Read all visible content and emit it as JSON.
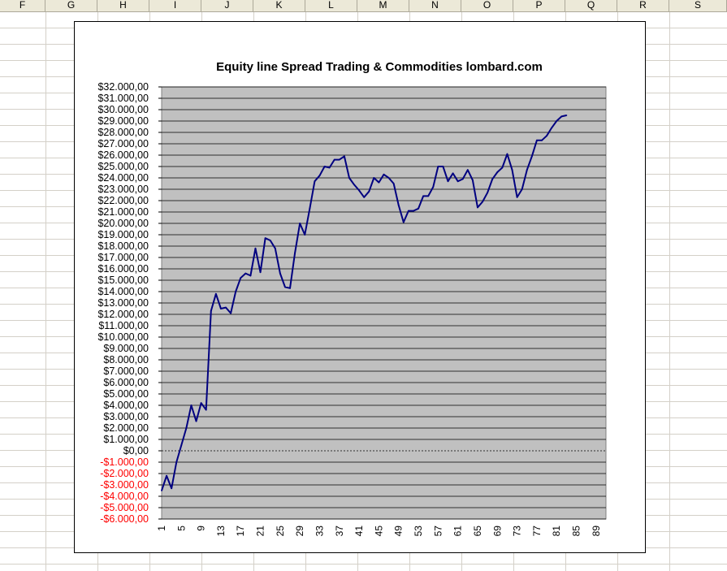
{
  "spreadsheet": {
    "columns": [
      {
        "label": "F"
      },
      {
        "label": "G"
      },
      {
        "label": "H"
      },
      {
        "label": "I"
      },
      {
        "label": "J"
      },
      {
        "label": "K"
      },
      {
        "label": "L"
      },
      {
        "label": "M"
      },
      {
        "label": "N"
      },
      {
        "label": "O"
      },
      {
        "label": "P"
      },
      {
        "label": "Q"
      },
      {
        "label": "R"
      },
      {
        "label": "S"
      }
    ]
  },
  "chart_data": {
    "type": "line",
    "title": "Equity line Spread Trading & Commodities lombard.com",
    "xlabel": "",
    "ylabel": "",
    "ylim": [
      -6000,
      32000
    ],
    "xlim": [
      1,
      91
    ],
    "grid": true,
    "legend": "none",
    "colors": {
      "line": "#000080",
      "plot_background": "#c0c0c0",
      "gridline": "#000000",
      "negative_tick": "#ff0000",
      "positive_tick": "#000000"
    },
    "y_ticks": [
      "$32.000,00",
      "$31.000,00",
      "$30.000,00",
      "$29.000,00",
      "$28.000,00",
      "$27.000,00",
      "$26.000,00",
      "$25.000,00",
      "$24.000,00",
      "$23.000,00",
      "$22.000,00",
      "$21.000,00",
      "$20.000,00",
      "$19.000,00",
      "$18.000,00",
      "$17.000,00",
      "$16.000,00",
      "$15.000,00",
      "$14.000,00",
      "$13.000,00",
      "$12.000,00",
      "$11.000,00",
      "$10.000,00",
      "$9.000,00",
      "$8.000,00",
      "$7.000,00",
      "$6.000,00",
      "$5.000,00",
      "$4.000,00",
      "$3.000,00",
      "$2.000,00",
      "$1.000,00",
      "$0,00",
      "-$1.000,00",
      "-$2.000,00",
      "-$3.000,00",
      "-$4.000,00",
      "-$5.000,00",
      "-$6.000,00"
    ],
    "x_ticks": [
      "1",
      "5",
      "9",
      "13",
      "17",
      "21",
      "25",
      "29",
      "33",
      "37",
      "41",
      "45",
      "49",
      "53",
      "57",
      "61",
      "65",
      "69",
      "73",
      "77",
      "81",
      "85",
      "89"
    ],
    "series": [
      {
        "x": [
          1,
          2,
          3,
          4,
          5,
          6,
          7,
          8,
          9,
          10,
          11,
          12,
          13,
          14,
          15,
          16,
          17,
          18,
          19,
          20,
          21,
          22,
          23,
          24,
          25,
          26,
          27,
          28,
          29,
          30,
          31,
          32,
          33,
          34,
          35,
          36,
          37,
          38,
          39,
          40,
          41,
          42,
          43,
          44,
          45,
          46,
          47,
          48,
          49,
          50,
          51,
          52,
          53,
          54,
          55,
          56,
          57,
          58,
          59,
          60,
          61,
          62,
          63,
          64,
          65,
          66,
          67,
          68,
          69,
          70,
          71,
          72,
          73,
          74,
          75,
          76,
          77,
          78,
          79,
          80,
          81,
          82,
          83
        ],
        "values": [
          -3500,
          -2200,
          -3300,
          -1000,
          500,
          2000,
          4000,
          2600,
          4200,
          3600,
          12300,
          13800,
          12500,
          12600,
          12100,
          14000,
          15200,
          15600,
          15400,
          17800,
          15700,
          18700,
          18500,
          17800,
          15600,
          14400,
          14300,
          17400,
          20000,
          19000,
          21300,
          23700,
          24200,
          25000,
          24900,
          25600,
          25600,
          25900,
          24000,
          23400,
          22900,
          22300,
          22800,
          24000,
          23600,
          24300,
          24000,
          23500,
          21600,
          20100,
          21100,
          21100,
          21300,
          22400,
          22400,
          23200,
          25000,
          25000,
          23700,
          24400,
          23700,
          23900,
          24700,
          23800,
          21400,
          21900,
          22700,
          23900,
          24500,
          24900,
          26100,
          24700,
          22300,
          23000,
          24700,
          25900,
          27300,
          27300,
          27700,
          28400,
          29000,
          29400,
          29500
        ]
      }
    ]
  }
}
